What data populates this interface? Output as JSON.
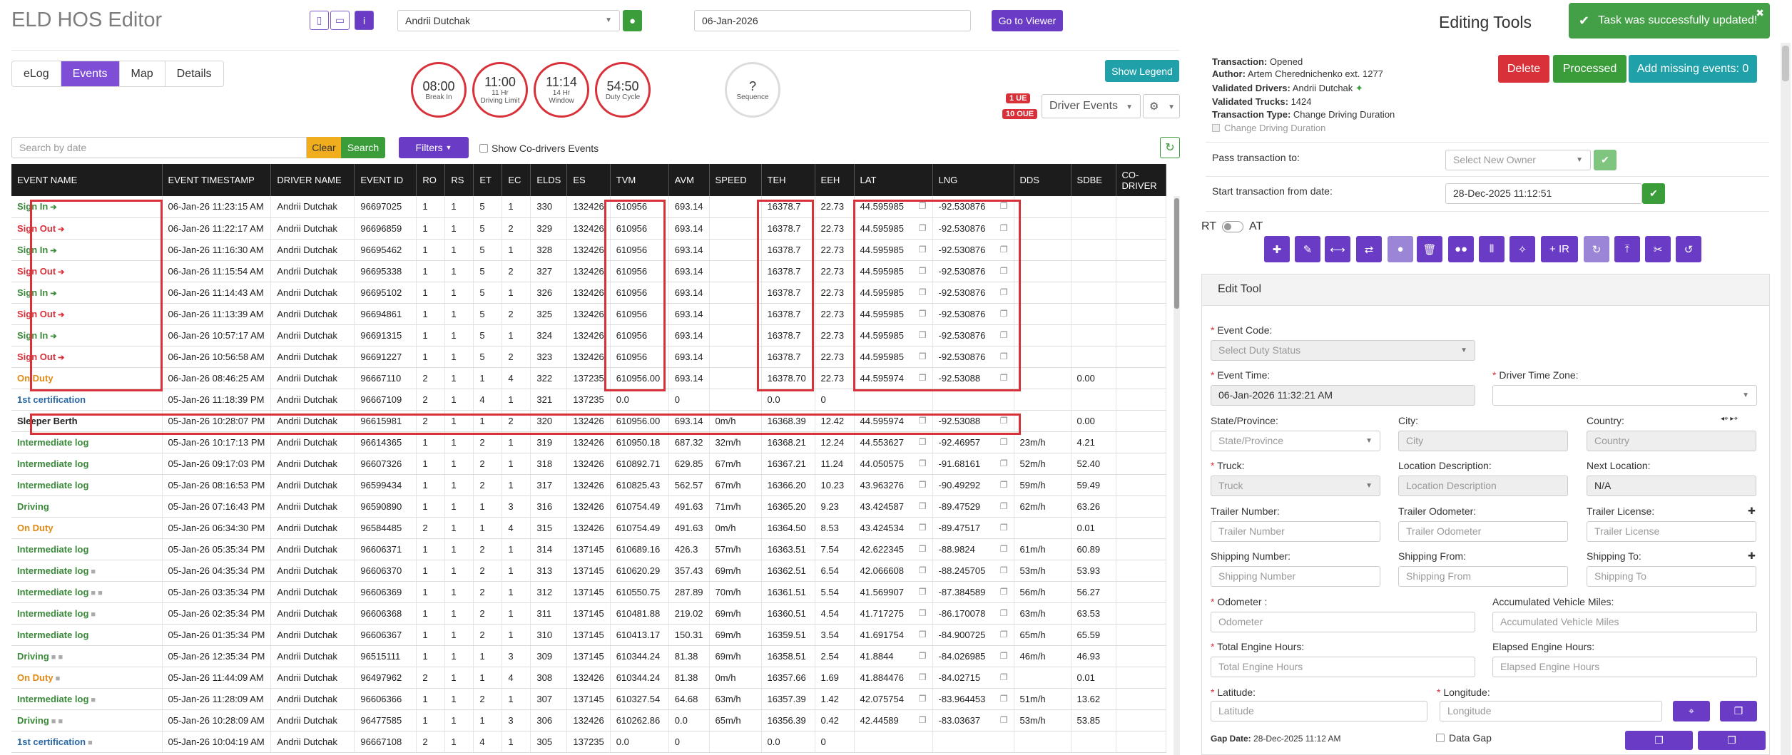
{
  "app": {
    "title": "ELD HOS Editor"
  },
  "header": {
    "driver": "Andrii Dutchak",
    "date": "06-Jan-2026",
    "viewer_btn": "Go to Viewer",
    "info_icon": "i"
  },
  "tabs": [
    "eLog",
    "Events",
    "Map",
    "Details"
  ],
  "clocks": [
    {
      "value": "08:00",
      "label": "Break In"
    },
    {
      "value": "11:00",
      "label": "11 Hr Driving Limit"
    },
    {
      "value": "11:14",
      "label": "14 Hr Window"
    },
    {
      "value": "54:50",
      "label": "Duty Cycle"
    },
    {
      "value": "?",
      "label": "Sequence"
    }
  ],
  "legend_btn": "Show Legend",
  "badges": {
    "ue": "1 UE",
    "oue": "10 OUE"
  },
  "driver_events_select": "Driver Events",
  "search": {
    "placeholder": "Search by date",
    "clear": "Clear",
    "search": "Search",
    "filters": "Filters",
    "codrivers": "Show Co-drivers Events"
  },
  "table": {
    "columns": [
      "EVENT NAME",
      "EVENT TIMESTAMP",
      "DRIVER NAME",
      "EVENT ID",
      "RO",
      "RS",
      "ET",
      "EC",
      "ELDS",
      "ES",
      "TVM",
      "AVM",
      "SPEED",
      "TEH",
      "EEH",
      "LAT",
      "LNG",
      "DDS",
      "SDBE",
      "CO-DRIVER"
    ],
    "rows": [
      {
        "name": "Sign In",
        "color": "green",
        "icon": "sign-in",
        "ts": "06-Jan-26 11:23:15 AM",
        "driver": "Andrii Dutchak",
        "id": "96697025",
        "ro": "1",
        "rs": "1",
        "et": "5",
        "ec": "1",
        "elds": "330",
        "es": "132426",
        "tvm": "610956",
        "avm": "693.14",
        "speed": "",
        "teh": "16378.7",
        "eeh": "22.73",
        "lat": "44.595985",
        "lng": "-92.530876",
        "dds": "",
        "sdbe": ""
      },
      {
        "name": "Sign Out",
        "color": "red",
        "icon": "sign-out",
        "ts": "06-Jan-26 11:22:17 AM",
        "driver": "Andrii Dutchak",
        "id": "96696859",
        "ro": "1",
        "rs": "1",
        "et": "5",
        "ec": "2",
        "elds": "329",
        "es": "132426",
        "tvm": "610956",
        "avm": "693.14",
        "speed": "",
        "teh": "16378.7",
        "eeh": "22.73",
        "lat": "44.595985",
        "lng": "-92.530876",
        "dds": "",
        "sdbe": ""
      },
      {
        "name": "Sign In",
        "color": "green",
        "icon": "sign-in",
        "ts": "06-Jan-26 11:16:30 AM",
        "driver": "Andrii Dutchak",
        "id": "96695462",
        "ro": "1",
        "rs": "1",
        "et": "5",
        "ec": "1",
        "elds": "328",
        "es": "132426",
        "tvm": "610956",
        "avm": "693.14",
        "speed": "",
        "teh": "16378.7",
        "eeh": "22.73",
        "lat": "44.595985",
        "lng": "-92.530876",
        "dds": "",
        "sdbe": ""
      },
      {
        "name": "Sign Out",
        "color": "red",
        "icon": "sign-out",
        "ts": "06-Jan-26 11:15:54 AM",
        "driver": "Andrii Dutchak",
        "id": "96695338",
        "ro": "1",
        "rs": "1",
        "et": "5",
        "ec": "2",
        "elds": "327",
        "es": "132426",
        "tvm": "610956",
        "avm": "693.14",
        "speed": "",
        "teh": "16378.7",
        "eeh": "22.73",
        "lat": "44.595985",
        "lng": "-92.530876",
        "dds": "",
        "sdbe": ""
      },
      {
        "name": "Sign In",
        "color": "green",
        "icon": "sign-in",
        "ts": "06-Jan-26 11:14:43 AM",
        "driver": "Andrii Dutchak",
        "id": "96695102",
        "ro": "1",
        "rs": "1",
        "et": "5",
        "ec": "1",
        "elds": "326",
        "es": "132426",
        "tvm": "610956",
        "avm": "693.14",
        "speed": "",
        "teh": "16378.7",
        "eeh": "22.73",
        "lat": "44.595985",
        "lng": "-92.530876",
        "dds": "",
        "sdbe": ""
      },
      {
        "name": "Sign Out",
        "color": "red",
        "icon": "sign-out",
        "ts": "06-Jan-26 11:13:39 AM",
        "driver": "Andrii Dutchak",
        "id": "96694861",
        "ro": "1",
        "rs": "1",
        "et": "5",
        "ec": "2",
        "elds": "325",
        "es": "132426",
        "tvm": "610956",
        "avm": "693.14",
        "speed": "",
        "teh": "16378.7",
        "eeh": "22.73",
        "lat": "44.595985",
        "lng": "-92.530876",
        "dds": "",
        "sdbe": ""
      },
      {
        "name": "Sign In",
        "color": "green",
        "icon": "sign-in",
        "ts": "06-Jan-26 10:57:17 AM",
        "driver": "Andrii Dutchak",
        "id": "96691315",
        "ro": "1",
        "rs": "1",
        "et": "5",
        "ec": "1",
        "elds": "324",
        "es": "132426",
        "tvm": "610956",
        "avm": "693.14",
        "speed": "",
        "teh": "16378.7",
        "eeh": "22.73",
        "lat": "44.595985",
        "lng": "-92.530876",
        "dds": "",
        "sdbe": ""
      },
      {
        "name": "Sign Out",
        "color": "red",
        "icon": "sign-out",
        "ts": "06-Jan-26 10:56:58 AM",
        "driver": "Andrii Dutchak",
        "id": "96691227",
        "ro": "1",
        "rs": "1",
        "et": "5",
        "ec": "2",
        "elds": "323",
        "es": "132426",
        "tvm": "610956",
        "avm": "693.14",
        "speed": "",
        "teh": "16378.7",
        "eeh": "22.73",
        "lat": "44.595985",
        "lng": "-92.530876",
        "dds": "",
        "sdbe": ""
      },
      {
        "name": "On Duty",
        "color": "orange",
        "icon": "",
        "ts": "06-Jan-26 08:46:25 AM",
        "driver": "Andrii Dutchak",
        "id": "96667110",
        "ro": "2",
        "rs": "1",
        "et": "1",
        "ec": "4",
        "elds": "322",
        "es": "137235",
        "tvm": "610956.00",
        "avm": "693.14",
        "speed": "",
        "teh": "16378.70",
        "eeh": "22.73",
        "lat": "44.595974",
        "lng": "-92.53088",
        "dds": "",
        "sdbe": "0.00"
      },
      {
        "name": "1st certification",
        "color": "blue",
        "icon": "",
        "ts": "05-Jan-26 11:18:39 PM",
        "driver": "Andrii Dutchak",
        "id": "96667109",
        "ro": "2",
        "rs": "1",
        "et": "4",
        "ec": "1",
        "elds": "321",
        "es": "137235",
        "tvm": "0.0",
        "avm": "0",
        "speed": "",
        "teh": "0.0",
        "eeh": "0",
        "lat": "",
        "lng": "",
        "dds": "",
        "sdbe": ""
      },
      {
        "name": "Sleeper Berth",
        "color": "black",
        "icon": "",
        "ts": "05-Jan-26 10:28:07 PM",
        "driver": "Andrii Dutchak",
        "id": "96615981",
        "ro": "2",
        "rs": "1",
        "et": "1",
        "ec": "2",
        "elds": "320",
        "es": "132426",
        "tvm": "610956.00",
        "avm": "693.14",
        "speed": "0m/h",
        "teh": "16368.39",
        "eeh": "12.42",
        "lat": "44.595974",
        "lng": "-92.53088",
        "dds": "",
        "sdbe": "0.00"
      },
      {
        "name": "Intermediate log",
        "color": "green",
        "icon": "",
        "ts": "05-Jan-26 10:17:13 PM",
        "driver": "Andrii Dutchak",
        "id": "96614365",
        "ro": "1",
        "rs": "1",
        "et": "2",
        "ec": "1",
        "elds": "319",
        "es": "132426",
        "tvm": "610950.18",
        "avm": "687.32",
        "speed": "32m/h",
        "teh": "16368.21",
        "eeh": "12.24",
        "lat": "44.553627",
        "lng": "-92.46957",
        "dds": "23m/h",
        "sdbe": "4.21"
      },
      {
        "name": "Intermediate log",
        "color": "green",
        "icon": "",
        "ts": "05-Jan-26 09:17:03 PM",
        "driver": "Andrii Dutchak",
        "id": "96607326",
        "ro": "1",
        "rs": "1",
        "et": "2",
        "ec": "1",
        "elds": "318",
        "es": "132426",
        "tvm": "610892.71",
        "avm": "629.85",
        "speed": "67m/h",
        "teh": "16367.21",
        "eeh": "11.24",
        "lat": "44.050575",
        "lng": "-91.68161",
        "dds": "52m/h",
        "sdbe": "52.40"
      },
      {
        "name": "Intermediate log",
        "color": "green",
        "icon": "",
        "ts": "05-Jan-26 08:16:53 PM",
        "driver": "Andrii Dutchak",
        "id": "96599434",
        "ro": "1",
        "rs": "1",
        "et": "2",
        "ec": "1",
        "elds": "317",
        "es": "132426",
        "tvm": "610825.43",
        "avm": "562.57",
        "speed": "67m/h",
        "teh": "16366.20",
        "eeh": "10.23",
        "lat": "43.963276",
        "lng": "-90.49292",
        "dds": "59m/h",
        "sdbe": "59.49"
      },
      {
        "name": "Driving",
        "color": "green",
        "icon": "",
        "ts": "05-Jan-26 07:16:43 PM",
        "driver": "Andrii Dutchak",
        "id": "96590890",
        "ro": "1",
        "rs": "1",
        "et": "1",
        "ec": "3",
        "elds": "316",
        "es": "132426",
        "tvm": "610754.49",
        "avm": "491.63",
        "speed": "71m/h",
        "teh": "16365.20",
        "eeh": "9.23",
        "lat": "43.424587",
        "lng": "-89.47529",
        "dds": "62m/h",
        "sdbe": "63.26"
      },
      {
        "name": "On Duty",
        "color": "orange",
        "icon": "",
        "ts": "05-Jan-26 06:34:30 PM",
        "driver": "Andrii Dutchak",
        "id": "96584485",
        "ro": "2",
        "rs": "1",
        "et": "1",
        "ec": "4",
        "elds": "315",
        "es": "132426",
        "tvm": "610754.49",
        "avm": "491.63",
        "speed": "0m/h",
        "teh": "16364.50",
        "eeh": "8.53",
        "lat": "43.424534",
        "lng": "-89.47517",
        "dds": "",
        "sdbe": "0.01"
      },
      {
        "name": "Intermediate log",
        "color": "green",
        "icon": "",
        "ts": "05-Jan-26 05:35:34 PM",
        "driver": "Andrii Dutchak",
        "id": "96606371",
        "ro": "1",
        "rs": "1",
        "et": "2",
        "ec": "1",
        "elds": "314",
        "es": "137145",
        "tvm": "610689.16",
        "avm": "426.3",
        "speed": "57m/h",
        "teh": "16363.51",
        "eeh": "7.54",
        "lat": "42.622345",
        "lng": "-88.9824",
        "dds": "61m/h",
        "sdbe": "60.89"
      },
      {
        "name": "Intermediate log",
        "color": "green",
        "icon": "cam",
        "ts": "05-Jan-26 04:35:34 PM",
        "driver": "Andrii Dutchak",
        "id": "96606370",
        "ro": "1",
        "rs": "1",
        "et": "2",
        "ec": "1",
        "elds": "313",
        "es": "137145",
        "tvm": "610620.29",
        "avm": "357.43",
        "speed": "69m/h",
        "teh": "16362.51",
        "eeh": "6.54",
        "lat": "42.066608",
        "lng": "-88.245705",
        "dds": "53m/h",
        "sdbe": "53.93"
      },
      {
        "name": "Intermediate log",
        "color": "green",
        "icon": "cam2",
        "ts": "05-Jan-26 03:35:34 PM",
        "driver": "Andrii Dutchak",
        "id": "96606369",
        "ro": "1",
        "rs": "1",
        "et": "2",
        "ec": "1",
        "elds": "312",
        "es": "137145",
        "tvm": "610550.75",
        "avm": "287.89",
        "speed": "70m/h",
        "teh": "16361.51",
        "eeh": "5.54",
        "lat": "41.569907",
        "lng": "-87.384589",
        "dds": "56m/h",
        "sdbe": "56.27"
      },
      {
        "name": "Intermediate log",
        "color": "green",
        "icon": "cam",
        "ts": "05-Jan-26 02:35:34 PM",
        "driver": "Andrii Dutchak",
        "id": "96606368",
        "ro": "1",
        "rs": "1",
        "et": "2",
        "ec": "1",
        "elds": "311",
        "es": "137145",
        "tvm": "610481.88",
        "avm": "219.02",
        "speed": "69m/h",
        "teh": "16360.51",
        "eeh": "4.54",
        "lat": "41.717275",
        "lng": "-86.170078",
        "dds": "63m/h",
        "sdbe": "63.53"
      },
      {
        "name": "Intermediate log",
        "color": "green",
        "icon": "",
        "ts": "05-Jan-26 01:35:34 PM",
        "driver": "Andrii Dutchak",
        "id": "96606367",
        "ro": "1",
        "rs": "1",
        "et": "2",
        "ec": "1",
        "elds": "310",
        "es": "137145",
        "tvm": "610413.17",
        "avm": "150.31",
        "speed": "69m/h",
        "teh": "16359.51",
        "eeh": "3.54",
        "lat": "41.691754",
        "lng": "-84.900725",
        "dds": "65m/h",
        "sdbe": "65.59"
      },
      {
        "name": "Driving",
        "color": "green",
        "icon": "cam2",
        "ts": "05-Jan-26 12:35:34 PM",
        "driver": "Andrii Dutchak",
        "id": "96515111",
        "ro": "1",
        "rs": "1",
        "et": "1",
        "ec": "3",
        "elds": "309",
        "es": "137145",
        "tvm": "610344.24",
        "avm": "81.38",
        "speed": "69m/h",
        "teh": "16358.51",
        "eeh": "2.54",
        "lat": "41.8844",
        "lng": "-84.026985",
        "dds": "46m/h",
        "sdbe": "46.93"
      },
      {
        "name": "On Duty",
        "color": "orange",
        "icon": "cam",
        "ts": "05-Jan-26 11:44:09 AM",
        "driver": "Andrii Dutchak",
        "id": "96497962",
        "ro": "2",
        "rs": "1",
        "et": "1",
        "ec": "4",
        "elds": "308",
        "es": "132426",
        "tvm": "610344.24",
        "avm": "81.38",
        "speed": "0m/h",
        "teh": "16357.66",
        "eeh": "1.69",
        "lat": "41.884476",
        "lng": "-84.02715",
        "dds": "",
        "sdbe": "0.01"
      },
      {
        "name": "Intermediate log",
        "color": "green",
        "icon": "cam",
        "ts": "05-Jan-26 11:28:09 AM",
        "driver": "Andrii Dutchak",
        "id": "96606366",
        "ro": "1",
        "rs": "1",
        "et": "2",
        "ec": "1",
        "elds": "307",
        "es": "137145",
        "tvm": "610327.54",
        "avm": "64.68",
        "speed": "63m/h",
        "teh": "16357.39",
        "eeh": "1.42",
        "lat": "42.075754",
        "lng": "-83.964453",
        "dds": "51m/h",
        "sdbe": "13.62"
      },
      {
        "name": "Driving",
        "color": "green",
        "icon": "cam2",
        "ts": "05-Jan-26 10:28:09 AM",
        "driver": "Andrii Dutchak",
        "id": "96477585",
        "ro": "1",
        "rs": "1",
        "et": "1",
        "ec": "3",
        "elds": "306",
        "es": "132426",
        "tvm": "610262.86",
        "avm": "0.0",
        "speed": "65m/h",
        "teh": "16356.39",
        "eeh": "0.42",
        "lat": "42.44589",
        "lng": "-83.03637",
        "dds": "53m/h",
        "sdbe": "53.85"
      },
      {
        "name": "1st certification",
        "color": "blue",
        "icon": "cam",
        "ts": "05-Jan-26 10:04:19 AM",
        "driver": "Andrii Dutchak",
        "id": "96667108",
        "ro": "2",
        "rs": "1",
        "et": "4",
        "ec": "1",
        "elds": "305",
        "es": "137235",
        "tvm": "0.0",
        "avm": "0",
        "speed": "",
        "teh": "0.0",
        "eeh": "0",
        "lat": "",
        "lng": "",
        "dds": "",
        "sdbe": ""
      }
    ]
  },
  "editing": {
    "title": "Editing Tools",
    "toast": "Task was successfully updated!",
    "transaction": {
      "k": "Transaction:",
      "v": "Opened"
    },
    "author": {
      "k": "Author:",
      "v": "Artem Cherednichenko ext. 1277"
    },
    "validated_drivers": {
      "k": "Validated Drivers:",
      "v": "Andrii Dutchak"
    },
    "validated_trucks": {
      "k": "Validated Trucks:",
      "v": "1424"
    },
    "transaction_type": {
      "k": "Transaction Type:",
      "v": "Change Driving Duration"
    },
    "checkbox_label": "Change Driving Duration",
    "delete": "Delete",
    "processed": "Processed",
    "add_missing": "Add missing events: 0",
    "pass_to": "Pass transaction to:",
    "owner_placeholder": "Select New Owner",
    "start_from": "Start transaction from date:",
    "start_date": "28-Dec-2025 11:12:51",
    "rt": "RT",
    "at": "AT",
    "ir_btn": "+ IR",
    "edit_tool": "Edit Tool",
    "fields": {
      "event_code": "Event Code:",
      "event_code_ph": "Select Duty Status",
      "event_time": "Event Time:",
      "event_time_val": "06-Jan-2026 11:32:21 AM",
      "driver_tz": "Driver Time Zone:",
      "state": "State/Province:",
      "state_ph": "State/Province",
      "city": "City:",
      "city_ph": "City",
      "country": "Country:",
      "country_ph": "Country",
      "truck": "Truck:",
      "truck_ph": "Truck",
      "loc_desc": "Location Description:",
      "loc_desc_ph": "Location Description",
      "next_loc": "Next Location:",
      "next_loc_val": "N/A",
      "trailer_num": "Trailer Number:",
      "trailer_num_ph": "Trailer Number",
      "trailer_odo": "Trailer Odometer:",
      "trailer_odo_ph": "Trailer Odometer",
      "trailer_lic": "Trailer License:",
      "trailer_lic_ph": "Trailer License",
      "ship_num": "Shipping Number:",
      "ship_num_ph": "Shipping Number",
      "ship_from": "Shipping From:",
      "ship_from_ph": "Shipping From",
      "ship_to": "Shipping To:",
      "ship_to_ph": "Shipping To",
      "odometer": "Odometer :",
      "odometer_ph": "Odometer",
      "acc_miles": "Accumulated Vehicle Miles:",
      "acc_miles_ph": "Accumulated Vehicle Miles",
      "engine_hours": "Total Engine Hours:",
      "engine_hours_ph": "Total Engine Hours",
      "elapsed_hours": "Elapsed Engine Hours:",
      "elapsed_hours_ph": "Elapsed Engine Hours",
      "latitude": "Latitude:",
      "latitude_ph": "Latitude",
      "longitude": "Longitude:",
      "longitude_ph": "Longitude",
      "gap_date_k": "Gap Date:",
      "gap_date_v": "28-Dec-2025 11:12 AM",
      "data_gap": "Data Gap"
    }
  },
  "colors": {
    "accent": "#6a3bc5",
    "danger": "#d8313a",
    "success": "#3a9d3a",
    "info": "#20a0a8",
    "warning": "#f0ad1d"
  }
}
